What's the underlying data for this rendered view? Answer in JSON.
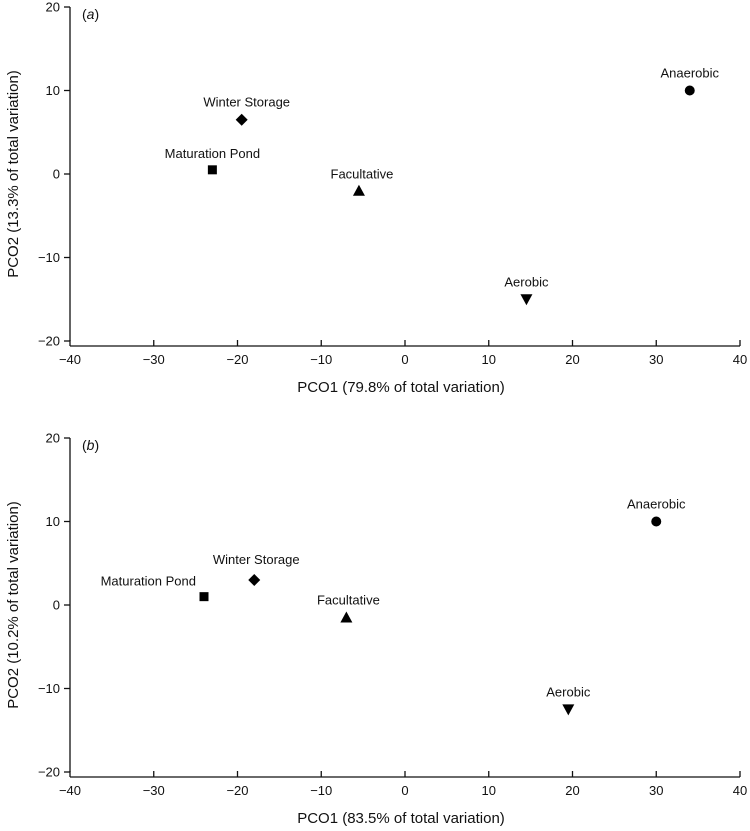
{
  "chart_data": [
    {
      "type": "scatter",
      "panel_label_open": "(",
      "panel_label_letter": "a",
      "panel_label_close": ")",
      "xlabel": "PCO1 (79.8% of total variation)",
      "ylabel": "PCO2 (13.3% of total variation)",
      "xlim": [
        -40,
        40
      ],
      "ylim": [
        -20,
        20
      ],
      "xticks": [
        -40,
        -30,
        -20,
        -10,
        0,
        10,
        20,
        30,
        40
      ],
      "yticks": [
        -20,
        -10,
        0,
        10,
        20
      ],
      "grid": false,
      "points": [
        {
          "label": "Anaerobic",
          "x": 34,
          "y": 10,
          "marker": "circle"
        },
        {
          "label": "Winter Storage",
          "x": -19.5,
          "y": 6.5,
          "marker": "diamond"
        },
        {
          "label": "Maturation Pond",
          "x": -23,
          "y": 0.5,
          "marker": "square"
        },
        {
          "label": "Facultative",
          "x": -5.5,
          "y": -2,
          "marker": "triangle-up"
        },
        {
          "label": "Aerobic",
          "x": 14.5,
          "y": -15,
          "marker": "triangle-down"
        }
      ]
    },
    {
      "type": "scatter",
      "panel_label_open": "(",
      "panel_label_letter": "b",
      "panel_label_close": ")",
      "xlabel": "PCO1 (83.5% of total variation)",
      "ylabel": "PCO2 (10.2% of total variation)",
      "xlim": [
        -40,
        40
      ],
      "ylim": [
        -20,
        20
      ],
      "xticks": [
        -40,
        -30,
        -20,
        -10,
        0,
        10,
        20,
        30,
        40
      ],
      "yticks": [
        -20,
        -10,
        0,
        10,
        20
      ],
      "grid": false,
      "points": [
        {
          "label": "Anaerobic",
          "x": 30,
          "y": 10,
          "marker": "circle"
        },
        {
          "label": "Winter Storage",
          "x": -18,
          "y": 3,
          "marker": "diamond"
        },
        {
          "label": "Maturation Pond",
          "x": -24,
          "y": 1,
          "marker": "square"
        },
        {
          "label": "Facultative",
          "x": -7,
          "y": -1.5,
          "marker": "triangle-up"
        },
        {
          "label": "Aerobic",
          "x": 19.5,
          "y": -12.5,
          "marker": "triangle-down"
        }
      ]
    }
  ]
}
